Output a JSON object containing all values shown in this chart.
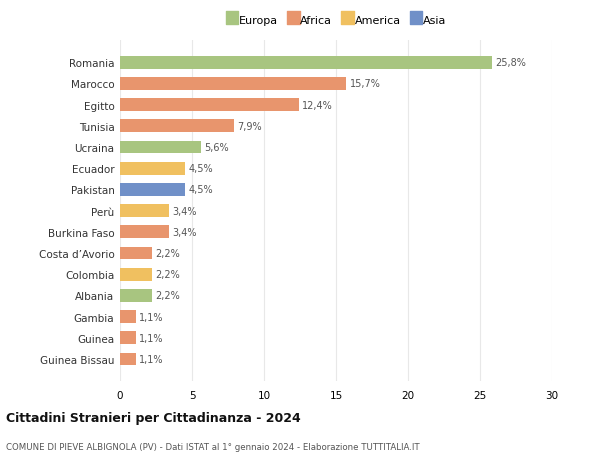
{
  "countries": [
    "Guinea Bissau",
    "Guinea",
    "Gambia",
    "Albania",
    "Colombia",
    "Costa d’Avorio",
    "Burkina Faso",
    "Perù",
    "Pakistan",
    "Ecuador",
    "Ucraina",
    "Tunisia",
    "Egitto",
    "Marocco",
    "Romania"
  ],
  "values": [
    1.1,
    1.1,
    1.1,
    2.2,
    2.2,
    2.2,
    3.4,
    3.4,
    4.5,
    4.5,
    5.6,
    7.9,
    12.4,
    15.7,
    25.8
  ],
  "labels": [
    "1,1%",
    "1,1%",
    "1,1%",
    "2,2%",
    "2,2%",
    "2,2%",
    "3,4%",
    "3,4%",
    "4,5%",
    "4,5%",
    "5,6%",
    "7,9%",
    "12,4%",
    "15,7%",
    "25,8%"
  ],
  "colors": [
    "#e8956d",
    "#e8956d",
    "#e8956d",
    "#a8c580",
    "#f0c060",
    "#e8956d",
    "#e8956d",
    "#f0c060",
    "#7090c8",
    "#f0c060",
    "#a8c580",
    "#e8956d",
    "#e8956d",
    "#e8956d",
    "#a8c580"
  ],
  "legend": [
    {
      "label": "Europa",
      "color": "#a8c580"
    },
    {
      "label": "Africa",
      "color": "#e8956d"
    },
    {
      "label": "America",
      "color": "#f0c060"
    },
    {
      "label": "Asia",
      "color": "#7090c8"
    }
  ],
  "title": "Cittadini Stranieri per Cittadinanza - 2024",
  "subtitle": "COMUNE DI PIEVE ALBIGNOLA (PV) - Dati ISTAT al 1° gennaio 2024 - Elaborazione TUTTITALIA.IT",
  "xlim": [
    0,
    30
  ],
  "xticks": [
    0,
    5,
    10,
    15,
    20,
    25,
    30
  ],
  "background_color": "#ffffff",
  "grid_color": "#e8e8e8"
}
